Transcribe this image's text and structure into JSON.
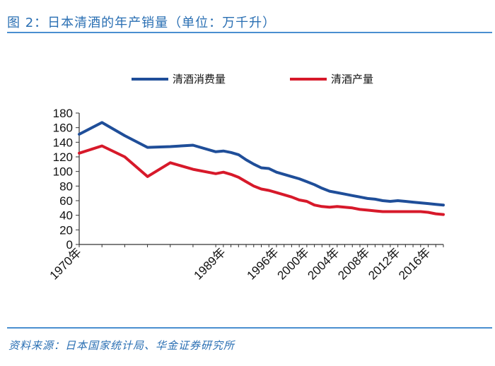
{
  "header": {
    "title": "图 2：日本清酒的年产销量（单位：万千升）"
  },
  "source": {
    "text": "资料来源：日本国家统计局、华金证券研究所"
  },
  "colors": {
    "header": "#2a6fb3",
    "consumption": "#1f4e99",
    "production": "#d7192a"
  },
  "chart_data": {
    "type": "line",
    "title": "",
    "xlabel": "",
    "ylabel": "",
    "ylim": [
      0,
      180
    ],
    "yticks": [
      0,
      20,
      40,
      60,
      80,
      100,
      120,
      140,
      160,
      180
    ],
    "grid": false,
    "legend_position": "top",
    "x": [
      1970,
      1973,
      1976,
      1979,
      1982,
      1985,
      1988,
      1989,
      1990,
      1991,
      1992,
      1993,
      1994,
      1995,
      1996,
      1997,
      1998,
      1999,
      2000,
      2001,
      2002,
      2003,
      2004,
      2005,
      2006,
      2007,
      2008,
      2009,
      2010,
      2011,
      2012,
      2013,
      2014,
      2015,
      2016,
      2017,
      2018
    ],
    "x_tick_labels": [
      {
        "x": 1970,
        "label": "1970年"
      },
      {
        "x": 1989,
        "label": "1989年"
      },
      {
        "x": 1996,
        "label": "1996年"
      },
      {
        "x": 2000,
        "label": "2000年"
      },
      {
        "x": 2004,
        "label": "2004年"
      },
      {
        "x": 2008,
        "label": "2008年"
      },
      {
        "x": 2012,
        "label": "2012年"
      },
      {
        "x": 2016,
        "label": "2016年"
      }
    ],
    "series": [
      {
        "name": "清酒消费量",
        "values": [
          151,
          167,
          149,
          133,
          134,
          136,
          127,
          128,
          126,
          123,
          116,
          110,
          105,
          104,
          99,
          96,
          93,
          90,
          86,
          82,
          77,
          73,
          71,
          69,
          67,
          65,
          63,
          62,
          60,
          59,
          60,
          59,
          58,
          57,
          56,
          55,
          54
        ]
      },
      {
        "name": "清酒产量",
        "values": [
          125,
          135,
          120,
          93,
          112,
          103,
          97,
          99,
          96,
          92,
          86,
          80,
          76,
          74,
          71,
          68,
          65,
          61,
          59,
          54,
          52,
          51,
          52,
          51,
          50,
          48,
          47,
          46,
          45,
          45,
          45,
          45,
          45,
          45,
          44,
          42,
          41
        ]
      }
    ]
  }
}
